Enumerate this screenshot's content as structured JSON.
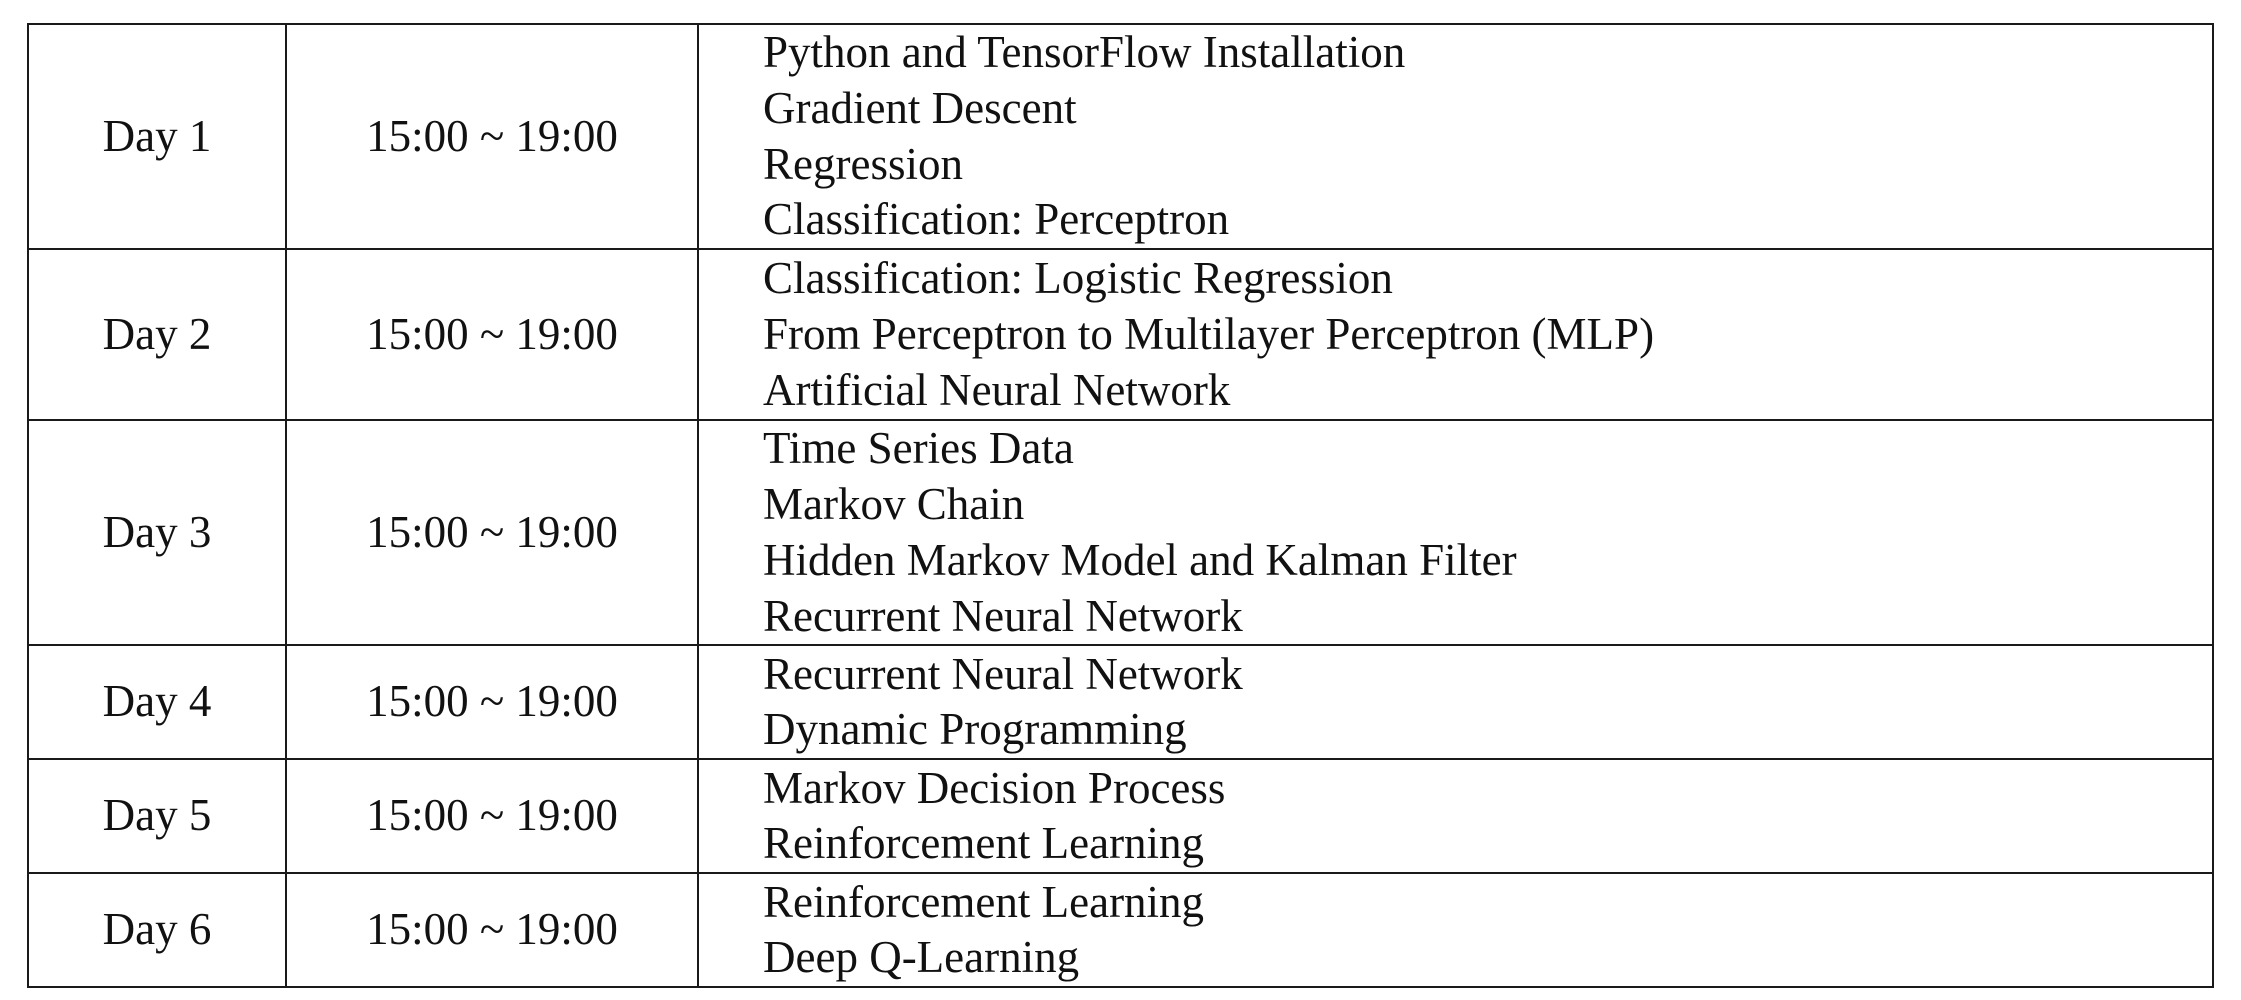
{
  "schedule": {
    "rows": [
      {
        "day": "Day 1",
        "time": "15:00 ~ 19:00",
        "topics": [
          "Python and TensorFlow Installation",
          "Gradient Descent",
          "Regression",
          "Classification: Perceptron"
        ]
      },
      {
        "day": "Day 2",
        "time": "15:00 ~ 19:00",
        "topics": [
          "Classification: Logistic Regression",
          "From Perceptron to Multilayer Perceptron (MLP)",
          "Artificial Neural Network"
        ]
      },
      {
        "day": "Day 3",
        "time": "15:00 ~ 19:00",
        "topics": [
          "Time Series Data",
          "Markov Chain",
          "Hidden Markov Model and Kalman Filter",
          "Recurrent Neural Network"
        ]
      },
      {
        "day": "Day 4",
        "time": "15:00 ~ 19:00",
        "topics": [
          "Recurrent Neural Network",
          "Dynamic Programming"
        ]
      },
      {
        "day": "Day 5",
        "time": "15:00 ~ 19:00",
        "topics": [
          "Markov Decision Process",
          "Reinforcement Learning"
        ]
      },
      {
        "day": "Day 6",
        "time": "15:00 ~ 19:00",
        "topics": [
          "Reinforcement Learning",
          "Deep Q-Learning"
        ]
      }
    ]
  }
}
